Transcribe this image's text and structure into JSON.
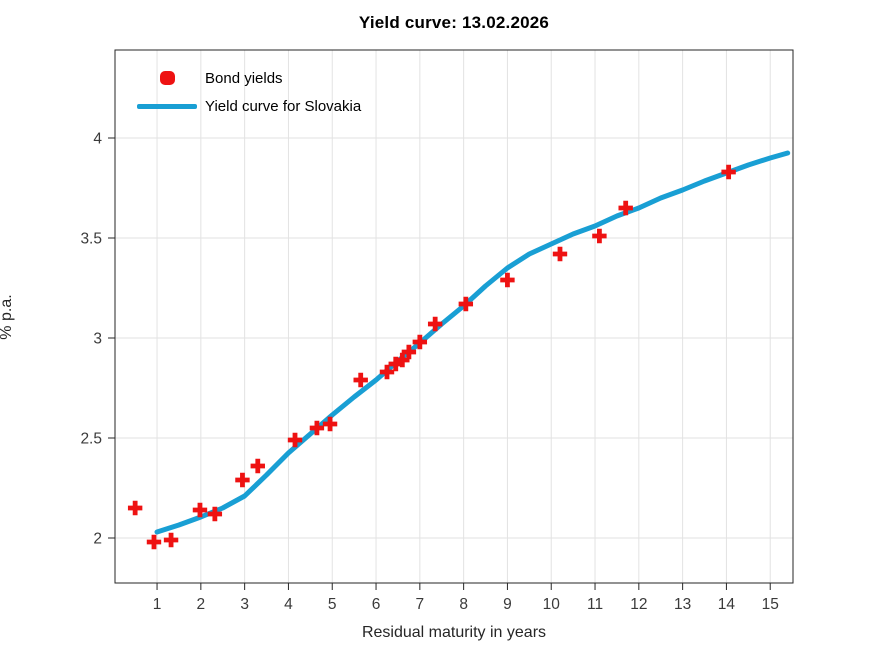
{
  "chart_data": {
    "type": "scatter",
    "title": "Yield curve: 13.02.2026",
    "xlabel": "Residual maturity in years",
    "ylabel": "% p.a.",
    "xlim": [
      0.04,
      15.52
    ],
    "ylim": [
      1.775,
      4.44
    ],
    "grid": true,
    "legend_position": "top-left-inside",
    "xticks": [
      1,
      2,
      3,
      4,
      5,
      6,
      7,
      8,
      9,
      10,
      11,
      12,
      13,
      14,
      15
    ],
    "yticks": [
      2,
      2.5,
      3,
      3.5,
      4
    ],
    "ytick_labels": [
      "2",
      "2.5",
      "3",
      "3.5",
      "4"
    ],
    "series": [
      {
        "name": "Bond yields",
        "type": "scatter",
        "marker": "plus",
        "color": "#ee1212",
        "points": [
          [
            0.5,
            2.15
          ],
          [
            0.93,
            1.98
          ],
          [
            1.32,
            1.99
          ],
          [
            1.98,
            2.14
          ],
          [
            2.32,
            2.12
          ],
          [
            2.95,
            2.29
          ],
          [
            3.3,
            2.36
          ],
          [
            4.15,
            2.49
          ],
          [
            4.65,
            2.55
          ],
          [
            4.95,
            2.57
          ],
          [
            5.65,
            2.79
          ],
          [
            6.25,
            2.83
          ],
          [
            6.45,
            2.87
          ],
          [
            6.6,
            2.89
          ],
          [
            6.75,
            2.93
          ],
          [
            7.0,
            2.98
          ],
          [
            7.35,
            3.07
          ],
          [
            8.05,
            3.17
          ],
          [
            9.0,
            3.29
          ],
          [
            10.2,
            3.42
          ],
          [
            11.1,
            3.51
          ],
          [
            11.7,
            3.65
          ],
          [
            14.05,
            3.83
          ]
        ]
      },
      {
        "name": "Yield curve for Slovakia",
        "type": "line",
        "color": "#199fd4",
        "points": [
          [
            1.0,
            2.03
          ],
          [
            1.5,
            2.065
          ],
          [
            2.0,
            2.105
          ],
          [
            2.5,
            2.15
          ],
          [
            3.0,
            2.21
          ],
          [
            3.5,
            2.315
          ],
          [
            4.0,
            2.425
          ],
          [
            4.5,
            2.52
          ],
          [
            5.0,
            2.615
          ],
          [
            5.5,
            2.705
          ],
          [
            6.0,
            2.79
          ],
          [
            6.5,
            2.885
          ],
          [
            7.0,
            2.975
          ],
          [
            7.5,
            3.07
          ],
          [
            8.0,
            3.16
          ],
          [
            8.5,
            3.26
          ],
          [
            9.0,
            3.35
          ],
          [
            9.5,
            3.42
          ],
          [
            10.0,
            3.47
          ],
          [
            10.5,
            3.52
          ],
          [
            11.0,
            3.56
          ],
          [
            11.5,
            3.61
          ],
          [
            12.0,
            3.65
          ],
          [
            12.5,
            3.7
          ],
          [
            13.0,
            3.74
          ],
          [
            13.5,
            3.785
          ],
          [
            14.0,
            3.825
          ],
          [
            14.5,
            3.865
          ],
          [
            15.0,
            3.9
          ],
          [
            15.4,
            3.925
          ]
        ]
      }
    ],
    "colors": {
      "grid": "#e2e2e2",
      "axis_box": "#262626",
      "tick_text": "#3a3a3a",
      "background": "#ffffff"
    }
  },
  "legend": {
    "items": [
      {
        "label": "Bond yields"
      },
      {
        "label": "Yield curve for Slovakia"
      }
    ]
  }
}
